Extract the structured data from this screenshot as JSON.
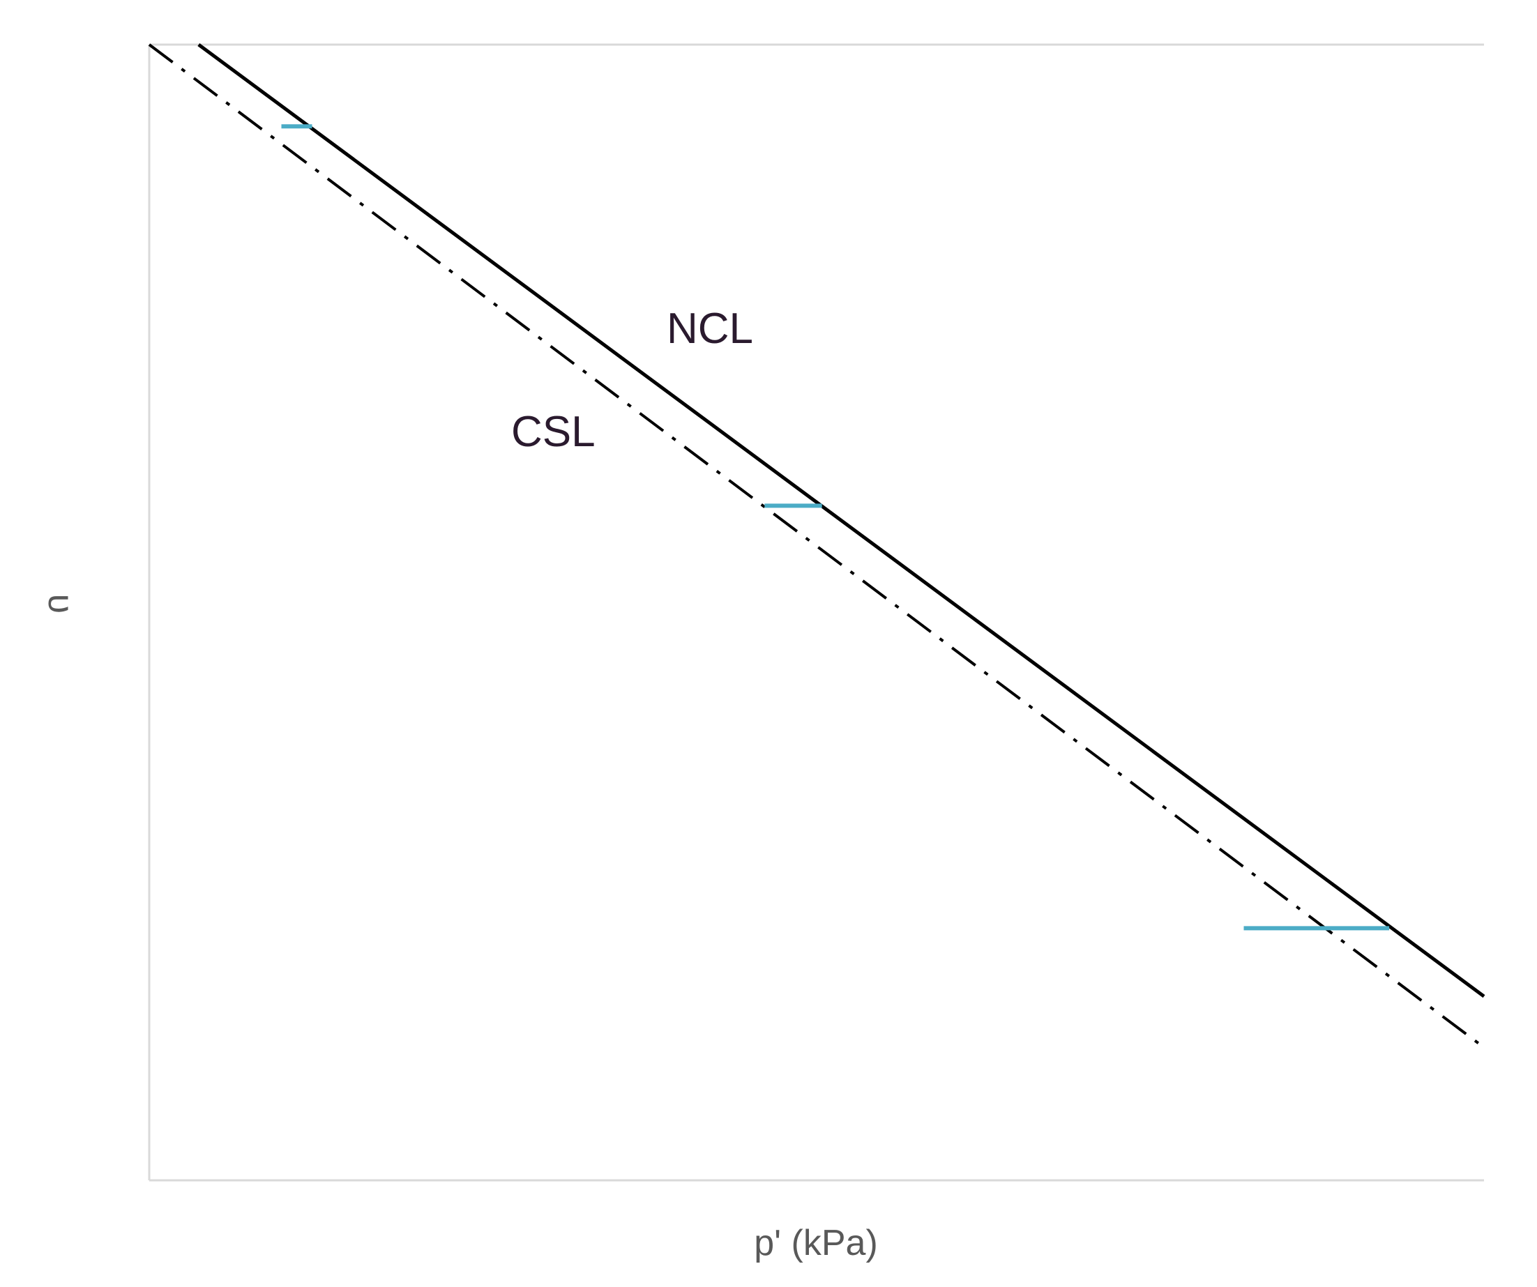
{
  "chart_data": {
    "type": "line",
    "title": "",
    "xlabel": "p' (kPa)",
    "ylabel": "υ",
    "xlim": [
      0,
      100
    ],
    "ylim": [
      0,
      100
    ],
    "grid": false,
    "legend": "none",
    "series": [
      {
        "name": "NCL",
        "style": "solid",
        "color": "#000000",
        "x": [
          3.7,
          100
        ],
        "y": [
          100,
          16.2
        ]
      },
      {
        "name": "CSL",
        "style": "dash-dot",
        "color": "#000000",
        "x": [
          0,
          100
        ],
        "y": [
          100,
          11.7
        ]
      }
    ],
    "segments": {
      "color": "#4bacc6",
      "items": [
        {
          "x": [
            9.9,
            12.2
          ],
          "y": 92.8
        },
        {
          "x": [
            46.1,
            50.4
          ],
          "y": 59.4
        },
        {
          "x": [
            82.0,
            92.9
          ],
          "y": 22.2
        }
      ]
    }
  }
}
